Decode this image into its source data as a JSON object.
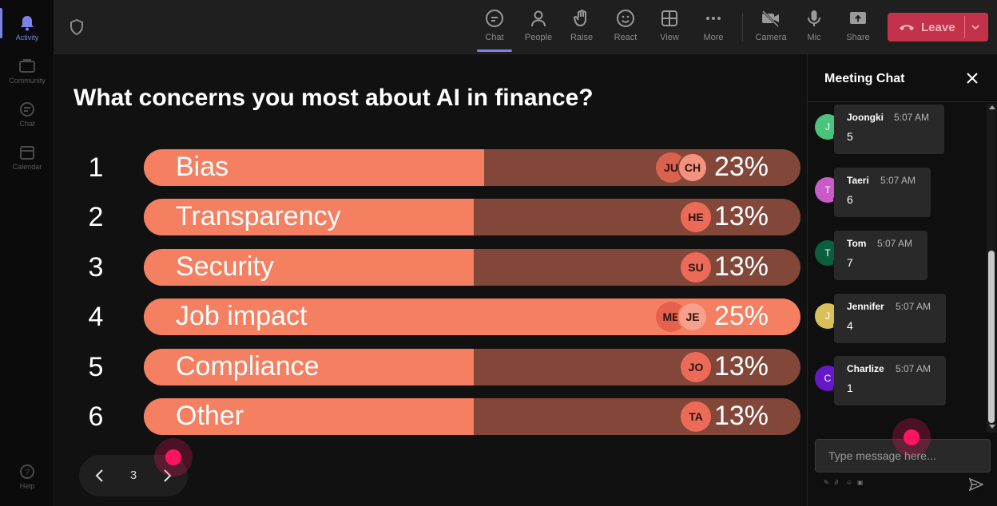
{
  "rail": {
    "items": [
      {
        "label": "Activity",
        "active": true
      },
      {
        "label": "Community"
      },
      {
        "label": "Chat"
      },
      {
        "label": "Calendar"
      }
    ],
    "help": {
      "label": "Help"
    }
  },
  "toolbar": {
    "chat": "Chat",
    "people": "People",
    "raise": "Raise",
    "react": "React",
    "view": "View",
    "more": "More",
    "camera": "Camera",
    "mic": "Mic",
    "share": "Share",
    "leave": "Leave"
  },
  "poll": {
    "question": "What concerns you most about AI in finance?",
    "options": [
      {
        "num": "1",
        "label": "Bias",
        "percent": "23%",
        "fraction": 0.518,
        "avatars": [
          "JU",
          "CH"
        ]
      },
      {
        "num": "2",
        "label": "Transparency",
        "percent": "13%",
        "fraction": 0.502,
        "avatars": [
          "HE"
        ]
      },
      {
        "num": "3",
        "label": "Security",
        "percent": "13%",
        "fraction": 0.502,
        "avatars": [
          "SU"
        ]
      },
      {
        "num": "4",
        "label": "Job impact",
        "percent": "25%",
        "fraction": 1.0,
        "avatars": [
          "ME",
          "JE"
        ]
      },
      {
        "num": "5",
        "label": "Compliance",
        "percent": "13%",
        "fraction": 0.502,
        "avatars": [
          "JO"
        ]
      },
      {
        "num": "6",
        "label": "Other",
        "percent": "13%",
        "fraction": 0.502,
        "avatars": [
          "TA"
        ]
      }
    ],
    "page": "3"
  },
  "colors": {
    "bar_fill": "#f47f61",
    "bar_track": "#83473a",
    "accent": "#7b83eb",
    "leave": "#c4314b"
  },
  "chat": {
    "title": "Meeting Chat",
    "messages": [
      {
        "initial": "J",
        "name": "Joongki",
        "time": "5:07 AM",
        "text": "5",
        "color": "#4cc37a"
      },
      {
        "initial": "T",
        "name": "Taeri",
        "time": "5:07 AM",
        "text": "6",
        "color": "#c85bc8"
      },
      {
        "initial": "T",
        "name": "Tom",
        "time": "5:07 AM",
        "text": "7",
        "color": "#0b5e3e"
      },
      {
        "initial": "J",
        "name": "Jennifer",
        "time": "5:07 AM",
        "text": "4",
        "color": "#d9c15a"
      },
      {
        "initial": "C",
        "name": "Charlize",
        "time": "5:07 AM",
        "text": "1",
        "color": "#6418c8"
      }
    ],
    "placeholder": "Type message here..."
  }
}
